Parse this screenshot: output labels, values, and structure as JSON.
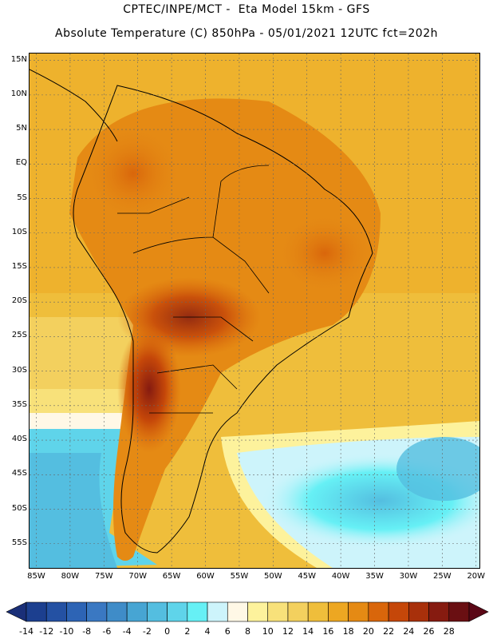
{
  "header": {
    "line1": "CPTEC/INPE/MCT -  Eta Model 15km - GFS",
    "line2": "Absolute Temperature (C) 850hPa - 05/01/2021 12UTC fct=202h"
  },
  "axes": {
    "latitudes": [
      "15N",
      "10N",
      "5N",
      "EQ",
      "5S",
      "10S",
      "15S",
      "20S",
      "25S",
      "30S",
      "35S",
      "40S",
      "45S",
      "50S",
      "55S"
    ],
    "longitudes": [
      "85W",
      "80W",
      "75W",
      "70W",
      "65W",
      "60W",
      "55W",
      "50W",
      "45W",
      "40W",
      "35W",
      "30W",
      "25W",
      "20W"
    ]
  },
  "colorbar": {
    "labels": [
      "-14",
      "-12",
      "-10",
      "-8",
      "-6",
      "-4",
      "-2",
      "0",
      "2",
      "4",
      "6",
      "8",
      "10",
      "12",
      "14",
      "16",
      "18",
      "20",
      "22",
      "24",
      "26",
      "28"
    ],
    "colors": [
      "#1c3f8f",
      "#2451a3",
      "#2d64b5",
      "#3a78c2",
      "#3f8cc8",
      "#47a5d3",
      "#54bee0",
      "#5fd4ea",
      "#66f0f5",
      "#cdf4fb",
      "#fff8e6",
      "#fdf29c",
      "#f8e17a",
      "#f3d05e",
      "#efbe3b",
      "#eda722",
      "#e58a14",
      "#d9660b",
      "#c54709",
      "#a8300b",
      "#861b10",
      "#6a0f12"
    ],
    "under_color": "#1a2f78",
    "over_color": "#5b0716"
  },
  "map": {
    "lon_min": -86,
    "lon_max": -19.5,
    "lat_min": -58.5,
    "lat_max": 16
  }
}
